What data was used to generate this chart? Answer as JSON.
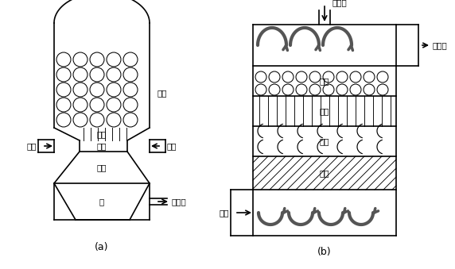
{
  "bg_color": "#ffffff",
  "line_color": "#000000",
  "dark_gray": "#555555",
  "label_a": "(a)",
  "label_b": "(b)",
  "labels": {
    "biomass": "生物质",
    "dry": "干燥",
    "pyrolysis": "热解",
    "oxidation": "氧化",
    "reduction": "还原",
    "ash": "灰",
    "air": "空气",
    "pyrogas": "热解气"
  },
  "font_size": 7.5,
  "lw_main": 1.2,
  "lw_fill": 0.7,
  "lw_arrow": 3.0
}
